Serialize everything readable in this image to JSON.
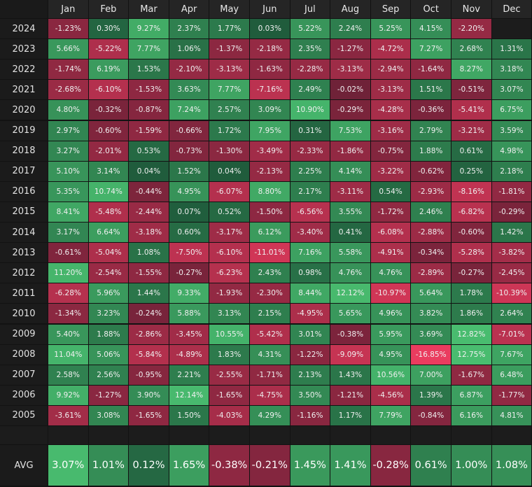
{
  "chart_data": {
    "type": "heatmap",
    "months": [
      "Jan",
      "Feb",
      "Mar",
      "Apr",
      "May",
      "Jun",
      "Jul",
      "Aug",
      "Sep",
      "Oct",
      "Nov",
      "Dec"
    ],
    "years": [
      "2024",
      "2023",
      "2022",
      "2021",
      "2020",
      "2019",
      "2018",
      "2017",
      "2016",
      "2015",
      "2014",
      "2013",
      "2012",
      "2011",
      "2010",
      "2009",
      "2008",
      "2007",
      "2006",
      "2005"
    ],
    "values": [
      [
        "-1.23%",
        "0.30%",
        "9.27%",
        "2.37%",
        "1.77%",
        "0.03%",
        "5.22%",
        "2.24%",
        "5.25%",
        "4.15%",
        "-2.20%",
        ""
      ],
      [
        "5.66%",
        "-5.22%",
        "7.77%",
        "1.06%",
        "-1.37%",
        "-2.18%",
        "2.35%",
        "-1.27%",
        "-4.72%",
        "7.27%",
        "2.68%",
        "1.31%"
      ],
      [
        "-1.74%",
        "6.19%",
        "1.53%",
        "-2.10%",
        "-3.13%",
        "-1.63%",
        "-2.28%",
        "-3.13%",
        "-2.94%",
        "-1.64%",
        "8.27%",
        "3.18%"
      ],
      [
        "-2.68%",
        "-6.10%",
        "-1.53%",
        "3.63%",
        "7.77%",
        "-7.16%",
        "2.49%",
        "-0.02%",
        "-3.13%",
        "1.51%",
        "-0.51%",
        "3.07%"
      ],
      [
        "4.80%",
        "-0.32%",
        "-0.87%",
        "7.24%",
        "2.57%",
        "3.09%",
        "10.90%",
        "-0.29%",
        "-4.28%",
        "-0.36%",
        "-5.41%",
        "6.75%"
      ],
      [
        "2.97%",
        "-0.60%",
        "-1.59%",
        "-0.66%",
        "1.72%",
        "7.95%",
        "0.31%",
        "7.53%",
        "-3.16%",
        "2.79%",
        "-3.21%",
        "3.59%"
      ],
      [
        "3.27%",
        "-2.01%",
        "0.53%",
        "-0.73%",
        "-1.30%",
        "-3.49%",
        "-2.33%",
        "-1.86%",
        "-0.75%",
        "1.88%",
        "0.61%",
        "4.98%"
      ],
      [
        "5.10%",
        "3.14%",
        "0.04%",
        "1.52%",
        "0.04%",
        "-2.13%",
        "2.25%",
        "4.14%",
        "-3.22%",
        "-0.62%",
        "0.25%",
        "2.18%"
      ],
      [
        "5.35%",
        "10.74%",
        "-0.44%",
        "4.95%",
        "-6.07%",
        "8.80%",
        "2.17%",
        "-3.11%",
        "0.54%",
        "-2.93%",
        "-8.16%",
        "-1.81%"
      ],
      [
        "8.41%",
        "-5.48%",
        "-2.44%",
        "0.07%",
        "0.52%",
        "-1.50%",
        "-6.56%",
        "3.55%",
        "-1.72%",
        "2.46%",
        "-6.82%",
        "-0.29%"
      ],
      [
        "3.17%",
        "6.64%",
        "-3.18%",
        "0.60%",
        "-3.17%",
        "6.12%",
        "-3.40%",
        "0.41%",
        "-6.08%",
        "-2.88%",
        "-0.60%",
        "1.42%"
      ],
      [
        "-0.61%",
        "-5.04%",
        "1.08%",
        "-7.50%",
        "-6.10%",
        "-11.01%",
        "7.16%",
        "5.58%",
        "-4.91%",
        "-0.34%",
        "-5.28%",
        "-3.82%"
      ],
      [
        "11.20%",
        "-2.54%",
        "-1.55%",
        "-0.27%",
        "-6.23%",
        "2.43%",
        "0.98%",
        "4.76%",
        "4.76%",
        "-2.89%",
        "-0.27%",
        "-2.45%"
      ],
      [
        "-6.28%",
        "5.96%",
        "1.44%",
        "9.33%",
        "-1.93%",
        "-2.30%",
        "8.44%",
        "12.12%",
        "-10.97%",
        "5.64%",
        "1.78%",
        "-10.39%"
      ],
      [
        "-1.34%",
        "3.23%",
        "-0.24%",
        "5.88%",
        "3.13%",
        "2.15%",
        "-4.95%",
        "5.65%",
        "4.96%",
        "3.82%",
        "1.86%",
        "2.64%"
      ],
      [
        "5.40%",
        "1.88%",
        "-2.86%",
        "-3.45%",
        "10.55%",
        "-5.42%",
        "3.01%",
        "-0.38%",
        "5.95%",
        "3.69%",
        "12.82%",
        "-7.01%"
      ],
      [
        "11.04%",
        "5.06%",
        "-5.84%",
        "-4.89%",
        "1.83%",
        "4.31%",
        "-1.22%",
        "-9.09%",
        "4.95%",
        "-16.85%",
        "12.75%",
        "7.67%"
      ],
      [
        "2.58%",
        "2.56%",
        "-0.95%",
        "2.21%",
        "-2.55%",
        "-1.71%",
        "2.13%",
        "1.43%",
        "10.56%",
        "7.00%",
        "-1.67%",
        "6.48%"
      ],
      [
        "9.92%",
        "-1.27%",
        "3.90%",
        "12.14%",
        "-1.65%",
        "-4.75%",
        "3.50%",
        "-1.21%",
        "-4.56%",
        "1.39%",
        "6.87%",
        "-1.77%"
      ],
      [
        "-3.61%",
        "3.08%",
        "-1.65%",
        "1.50%",
        "-4.03%",
        "4.29%",
        "-1.16%",
        "1.17%",
        "7.79%",
        "-0.84%",
        "6.16%",
        "4.81%"
      ]
    ],
    "avg_label": "AVG",
    "avg": [
      "3.07%",
      "1.01%",
      "0.12%",
      "1.65%",
      "-0.38%",
      "-0.21%",
      "1.45%",
      "1.41%",
      "-0.28%",
      "0.61%",
      "1.00%",
      "1.08%"
    ],
    "colors": {
      "positive": "#2e7d46",
      "negative": "#8a2640",
      "background": "#121212"
    }
  }
}
